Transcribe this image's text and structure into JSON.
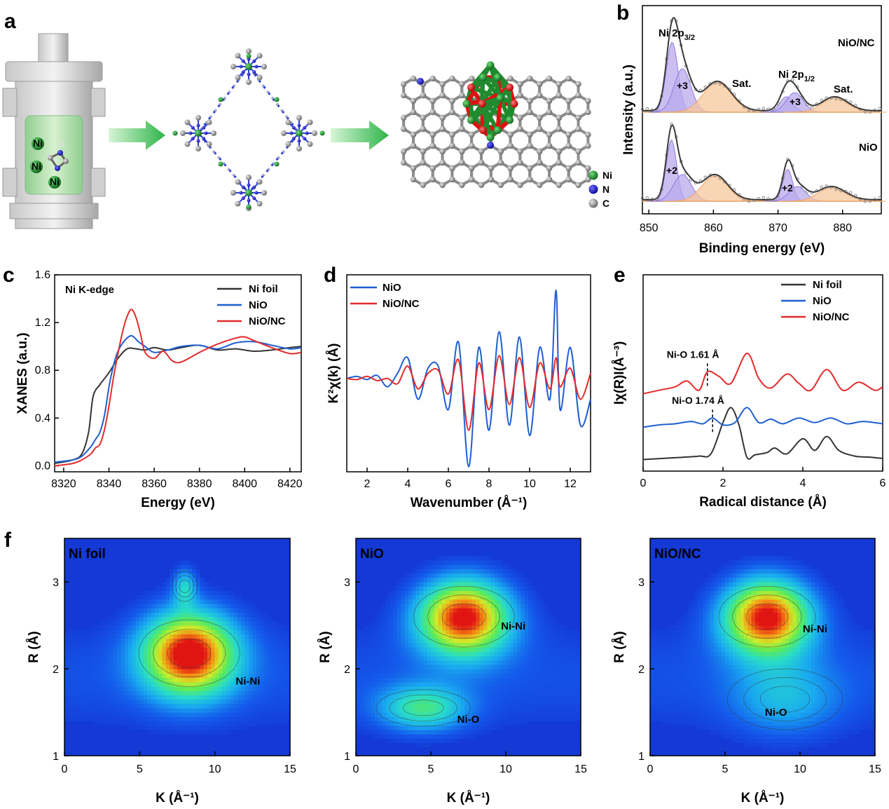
{
  "panels": {
    "a": {
      "label": "a",
      "legend": [
        {
          "name": "Ni",
          "color": "#1e8a2e"
        },
        {
          "name": "N",
          "color": "#1a1ad8"
        },
        {
          "name": "C",
          "color": "#9a9a9a"
        }
      ],
      "vessel_ball_labels": [
        "Ni",
        "Ni",
        "Ni"
      ]
    }
  },
  "chart_data": [
    {
      "panel": "b",
      "type": "line",
      "xlabel": "Binding energy (eV)",
      "ylabel": "Intensity (a.u.)",
      "xlim": [
        849,
        886
      ],
      "xticks": [
        850,
        860,
        870,
        880
      ],
      "yticks_shown": false,
      "stacks": [
        {
          "sample": "NiO/NC",
          "peaks": [
            {
              "label": "Ni 2p3/2",
              "center": 853.8,
              "type": "fit"
            },
            {
              "label": "+3",
              "center": 855.2,
              "type": "fit"
            },
            {
              "label": "Sat.",
              "center": 860.5,
              "type": "satellite"
            },
            {
              "label": "Ni 2p1/2",
              "center": 871.2,
              "type": "fit"
            },
            {
              "label": "+3",
              "center": 872.5,
              "type": "fit"
            },
            {
              "label": "Sat.",
              "center": 878.6,
              "type": "satellite"
            }
          ]
        },
        {
          "sample": "NiO",
          "peaks": [
            {
              "label": "+2",
              "center": 853.7,
              "type": "fit"
            },
            {
              "label": "Sat.",
              "center": 860.2,
              "type": "satellite"
            },
            {
              "label": "+2",
              "center": 871.5,
              "type": "fit"
            },
            {
              "label": "Sat.",
              "center": 878.2,
              "type": "satellite"
            }
          ]
        }
      ],
      "annotations": [
        "Ni 2p",
        "3/2",
        "Ni 2p",
        "1/2",
        "Sat.",
        "Sat.",
        "+3",
        "+3",
        "+2",
        "+2",
        "NiO/NC",
        "NiO"
      ],
      "colors": {
        "envelope": "#444444",
        "data": "#9a9a9a",
        "fit_fill": "#b9a9ec",
        "sat_fill": "#f5c79b"
      }
    },
    {
      "panel": "c",
      "type": "line",
      "title": "Ni K-edge",
      "xlabel": "Energy (eV)",
      "ylabel": "XANES (a.u.)",
      "xlim": [
        8316,
        8425
      ],
      "ylim": [
        -0.05,
        1.6
      ],
      "xticks": [
        8320,
        8340,
        8360,
        8380,
        8400,
        8420
      ],
      "yticks": [
        0.0,
        0.4,
        0.8,
        1.2,
        1.6
      ],
      "legend_position": "top-right",
      "series": [
        {
          "name": "Ni foil",
          "color": "#333333",
          "x": [
            8316,
            8324,
            8328,
            8331,
            8333,
            8336,
            8340,
            8344,
            8348,
            8352,
            8356,
            8360,
            8366,
            8372,
            8380,
            8388,
            8396,
            8404,
            8412,
            8420,
            8425
          ],
          "y": [
            0.02,
            0.05,
            0.1,
            0.28,
            0.58,
            0.68,
            0.78,
            0.9,
            0.98,
            0.98,
            0.97,
            0.99,
            0.97,
            0.99,
            1.01,
            0.97,
            0.98,
            0.96,
            0.97,
            0.99,
            1.0
          ]
        },
        {
          "name": "NiO",
          "color": "#1f5fd1",
          "x": [
            8316,
            8324,
            8328,
            8332,
            8334,
            8336,
            8338,
            8340,
            8342,
            8344,
            8347,
            8350,
            8353,
            8356,
            8360,
            8366,
            8372,
            8380,
            8388,
            8396,
            8404,
            8412,
            8420,
            8425
          ],
          "y": [
            0.03,
            0.05,
            0.08,
            0.16,
            0.22,
            0.28,
            0.42,
            0.66,
            0.84,
            0.96,
            1.05,
            1.09,
            1.04,
            1.0,
            0.95,
            0.97,
            1.0,
            1.01,
            0.98,
            1.03,
            1.04,
            1.01,
            0.98,
            0.99
          ]
        },
        {
          "name": "NiO/NC",
          "color": "#e32b2b",
          "x": [
            8316,
            8324,
            8328,
            8332,
            8334,
            8336,
            8338,
            8340,
            8342,
            8344,
            8346,
            8348,
            8350,
            8352,
            8354,
            8356,
            8360,
            8364,
            8368,
            8372,
            8380,
            8388,
            8396,
            8400,
            8404,
            8412,
            8420,
            8425
          ],
          "y": [
            0.0,
            0.02,
            0.05,
            0.1,
            0.15,
            0.18,
            0.3,
            0.5,
            0.74,
            0.94,
            1.12,
            1.25,
            1.31,
            1.24,
            1.1,
            0.95,
            0.9,
            0.96,
            0.88,
            0.87,
            0.95,
            1.02,
            1.07,
            1.08,
            1.05,
            0.99,
            0.94,
            0.95
          ]
        }
      ]
    },
    {
      "panel": "d",
      "type": "line",
      "xlabel": "Wavenumber (Å⁻¹)",
      "ylabel": "K²χ(k) (Å)",
      "xlim": [
        1,
        13
      ],
      "ylim": [
        -0.9,
        1.0
      ],
      "xticks": [
        2,
        4,
        6,
        8,
        10,
        12
      ],
      "yticks_shown": false,
      "legend_position": "top-left",
      "series": [
        {
          "name": "NiO",
          "color": "#1f5fd1",
          "x": [
            1,
            1.5,
            2,
            2.5,
            3,
            3.5,
            4,
            4.5,
            5,
            5.5,
            6,
            6.5,
            7,
            7.5,
            8,
            8.5,
            9,
            9.5,
            10,
            10.5,
            11,
            11.3,
            11.5,
            12,
            12.5,
            13
          ],
          "y": [
            0.0,
            0.02,
            -0.01,
            0.03,
            -0.08,
            0.05,
            0.2,
            -0.2,
            0.1,
            0.12,
            -0.3,
            0.35,
            -0.85,
            0.3,
            -0.5,
            0.45,
            -0.45,
            0.4,
            -0.55,
            0.3,
            -0.2,
            0.85,
            -0.3,
            0.3,
            -0.45,
            -0.2
          ]
        },
        {
          "name": "NiO/NC",
          "color": "#e32b2b",
          "x": [
            1,
            1.5,
            2,
            2.5,
            3,
            3.5,
            4,
            4.5,
            5,
            5.5,
            6,
            6.5,
            7,
            7.5,
            8,
            8.5,
            9,
            9.5,
            10,
            10.5,
            11,
            11.3,
            11.5,
            12,
            12.5,
            13
          ],
          "y": [
            0.0,
            -0.01,
            0.02,
            -0.02,
            0.0,
            -0.05,
            0.12,
            -0.1,
            0.05,
            0.08,
            -0.15,
            0.18,
            -0.5,
            0.15,
            -0.3,
            0.22,
            -0.25,
            0.2,
            -0.28,
            0.15,
            -0.1,
            0.2,
            -0.08,
            0.1,
            -0.2,
            0.05
          ]
        }
      ]
    },
    {
      "panel": "e",
      "type": "line",
      "xlabel": "Radical distance (Å)",
      "ylabel": "Iχ(R)I(Å⁻³)",
      "xlim": [
        0,
        6
      ],
      "xticks": [
        0,
        2,
        4,
        6
      ],
      "yticks_shown": false,
      "legend_position": "top-right",
      "series": [
        {
          "name": "Ni foil",
          "color": "#333333",
          "x": [
            0,
            0.5,
            1,
            1.4,
            1.7,
            2.0,
            2.2,
            2.4,
            2.6,
            2.8,
            3.1,
            3.3,
            3.6,
            4.0,
            4.3,
            4.6,
            4.9,
            5.3,
            5.7,
            6.0
          ],
          "y": [
            0.0,
            0.01,
            0.02,
            0.03,
            0.05,
            0.32,
            0.45,
            0.3,
            0.02,
            0.04,
            0.06,
            0.1,
            0.05,
            0.18,
            0.08,
            0.2,
            0.08,
            0.03,
            0.02,
            0.01
          ]
        },
        {
          "name": "NiO",
          "color": "#1f5fd1",
          "x": [
            0,
            0.4,
            0.8,
            1.2,
            1.5,
            1.74,
            2.0,
            2.3,
            2.6,
            2.9,
            3.2,
            3.5,
            3.9,
            4.3,
            4.7,
            5.1,
            5.5,
            6.0
          ],
          "y": [
            0.28,
            0.3,
            0.31,
            0.33,
            0.31,
            0.36,
            0.3,
            0.32,
            0.45,
            0.32,
            0.35,
            0.31,
            0.36,
            0.32,
            0.36,
            0.31,
            0.33,
            0.31
          ]
        },
        {
          "name": "NiO/NC",
          "color": "#e32b2b",
          "x": [
            0,
            0.4,
            0.8,
            1.1,
            1.4,
            1.61,
            1.9,
            2.2,
            2.6,
            2.9,
            3.2,
            3.6,
            3.9,
            4.2,
            4.6,
            5.0,
            5.4,
            5.8,
            6.0
          ],
          "y": [
            0.57,
            0.6,
            0.63,
            0.68,
            0.6,
            0.76,
            0.72,
            0.66,
            0.92,
            0.7,
            0.62,
            0.74,
            0.66,
            0.6,
            0.78,
            0.6,
            0.67,
            0.6,
            0.63
          ]
        }
      ],
      "annotations": [
        {
          "text": "Ni-O 1.61 Å",
          "x": 1.61,
          "series": "NiO/NC"
        },
        {
          "text": "Ni-O 1.74 Å",
          "x": 1.74,
          "series": "NiO"
        }
      ]
    },
    {
      "panel": "f",
      "type": "heatmap",
      "xlabel": "K (Å⁻¹)",
      "ylabel": "R (Å)",
      "xlim": [
        0,
        15
      ],
      "ylim": [
        1,
        3.5
      ],
      "xticks": [
        0,
        5,
        10,
        15
      ],
      "yticks": [
        1,
        2,
        3
      ],
      "maps": [
        {
          "title": "Ni foil",
          "blobs": [
            {
              "k": 8.3,
              "r": 2.18,
              "w": 4.8,
              "h": 0.55,
              "amp": 1.0,
              "label": "Ni-Ni"
            },
            {
              "k": 8,
              "r": 2.95,
              "w": 1.2,
              "h": 0.25,
              "amp": 0.35,
              "label": ""
            }
          ],
          "peak_labels": [
            {
              "text": "Ni-Ni",
              "k": 12.2,
              "r": 1.82
            }
          ]
        },
        {
          "title": "NiO",
          "blobs": [
            {
              "k": 7.2,
              "r": 2.6,
              "w": 4.8,
              "h": 0.5,
              "amp": 1.0,
              "label": "Ni-Ni"
            },
            {
              "k": 4.5,
              "r": 1.55,
              "w": 4.5,
              "h": 0.3,
              "amp": 0.45,
              "label": "Ni-O"
            }
          ],
          "peak_labels": [
            {
              "text": "Ni-Ni",
              "k": 10.5,
              "r": 2.45
            },
            {
              "text": "Ni-O",
              "k": 7.5,
              "r": 1.38
            }
          ]
        },
        {
          "title": "NiO/NC",
          "blobs": [
            {
              "k": 7.8,
              "r": 2.6,
              "w": 4.6,
              "h": 0.5,
              "amp": 1.0,
              "label": "Ni-Ni"
            },
            {
              "k": 9,
              "r": 1.65,
              "w": 5.5,
              "h": 0.5,
              "amp": 0.25,
              "label": "Ni-O"
            }
          ],
          "peak_labels": [
            {
              "text": "Ni-Ni",
              "k": 11,
              "r": 2.42
            },
            {
              "text": "Ni-O",
              "k": 8.4,
              "r": 1.46
            }
          ]
        }
      ]
    }
  ]
}
